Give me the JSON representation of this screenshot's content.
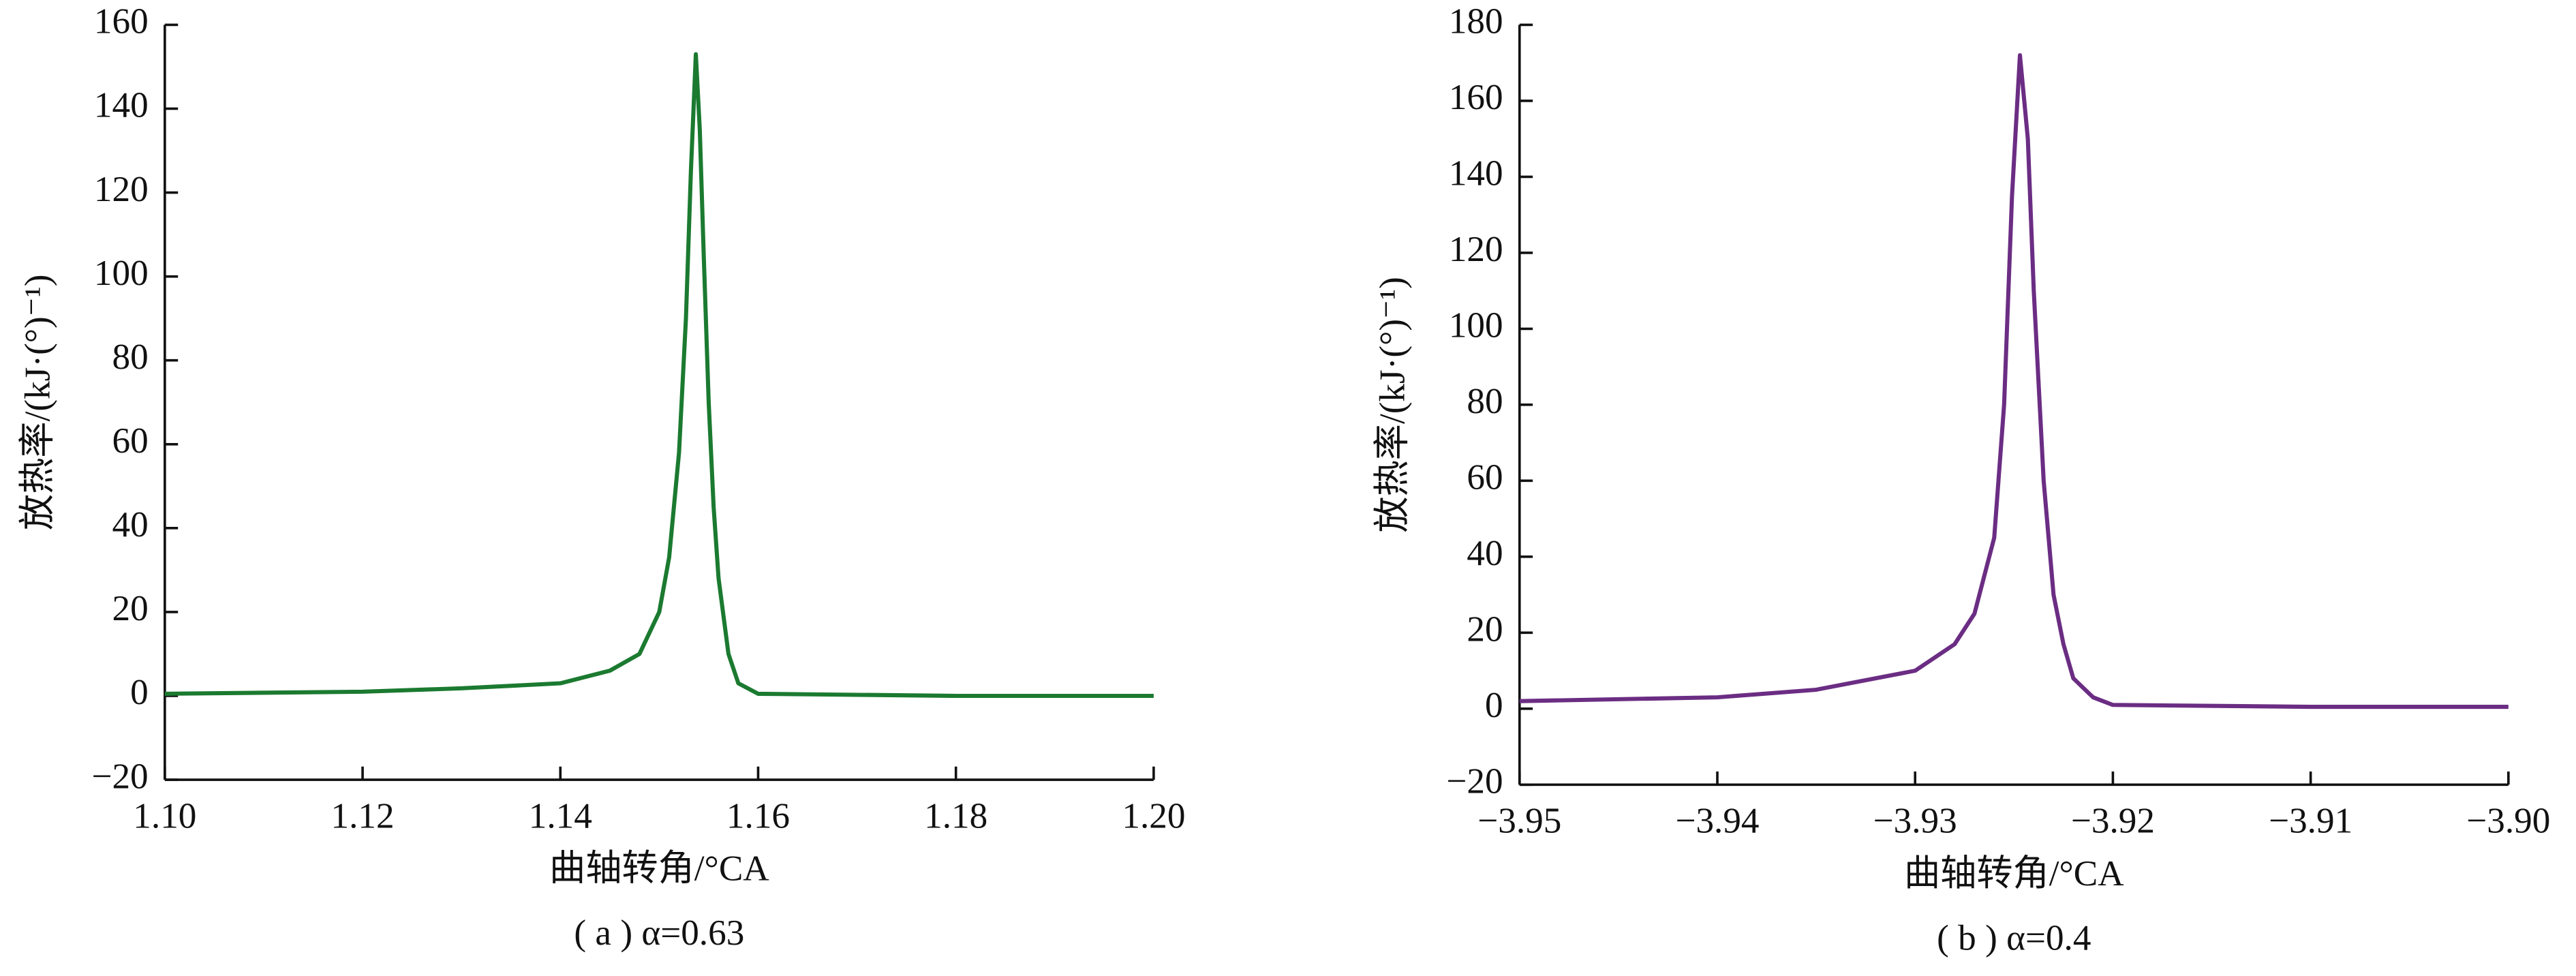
{
  "chart_data": [
    {
      "type": "line",
      "caption": "( a ) α=0.63",
      "xlabel": "曲轴转角/°CA",
      "ylabel": "放热率/(kJ·(°)⁻¹)",
      "color": "#1b7a30",
      "xlim": [
        1.1,
        1.2
      ],
      "ylim": [
        -20,
        160
      ],
      "xticks": [
        {
          "value": 1.1,
          "label": "1.10"
        },
        {
          "value": 1.12,
          "label": "1.12"
        },
        {
          "value": 1.14,
          "label": "1.14"
        },
        {
          "value": 1.16,
          "label": "1.16"
        },
        {
          "value": 1.18,
          "label": "1.18"
        },
        {
          "value": 1.2,
          "label": "1.20"
        }
      ],
      "yticks": [
        {
          "value": -20,
          "label": "−20"
        },
        0,
        20,
        40,
        60,
        80,
        100,
        120,
        140,
        160
      ],
      "x": [
        1.1,
        1.12,
        1.13,
        1.14,
        1.145,
        1.148,
        1.15,
        1.151,
        1.152,
        1.1527,
        1.1532,
        1.1537,
        1.1541,
        1.1545,
        1.155,
        1.1555,
        1.156,
        1.157,
        1.158,
        1.16,
        1.18,
        1.2
      ],
      "values": [
        0.5,
        1,
        1.8,
        3,
        6,
        10,
        20,
        33,
        58,
        90,
        125,
        153,
        135,
        105,
        70,
        45,
        28,
        10,
        3,
        0.5,
        0,
        0
      ]
    },
    {
      "type": "line",
      "caption": "( b ) α=0.4",
      "xlabel": "曲轴转角/°CA",
      "ylabel": "放热率/(kJ·(°)⁻¹)",
      "color": "#6b2d83",
      "xlim": [
        -3.95,
        -3.9
      ],
      "ylim": [
        -20,
        180
      ],
      "xticks": [
        {
          "value": -3.95,
          "label": "−3.95"
        },
        {
          "value": -3.94,
          "label": "−3.94"
        },
        {
          "value": -3.93,
          "label": "−3.93"
        },
        {
          "value": -3.92,
          "label": "−3.92"
        },
        {
          "value": -3.91,
          "label": "−3.91"
        },
        {
          "value": -3.9,
          "label": "−3.90"
        }
      ],
      "yticks": [
        {
          "value": -20,
          "label": "−20"
        },
        0,
        20,
        40,
        60,
        80,
        100,
        120,
        140,
        160,
        180
      ],
      "x": [
        -3.95,
        -3.94,
        -3.935,
        -3.93,
        -3.928,
        -3.927,
        -3.926,
        -3.9255,
        -3.9251,
        -3.9247,
        -3.9243,
        -3.924,
        -3.9235,
        -3.923,
        -3.9225,
        -3.922,
        -3.921,
        -3.92,
        -3.91,
        -3.9
      ],
      "values": [
        2,
        3,
        5,
        10,
        17,
        25,
        45,
        80,
        135,
        172,
        150,
        110,
        60,
        30,
        17,
        8,
        3,
        1,
        0.5,
        0.5
      ]
    }
  ]
}
